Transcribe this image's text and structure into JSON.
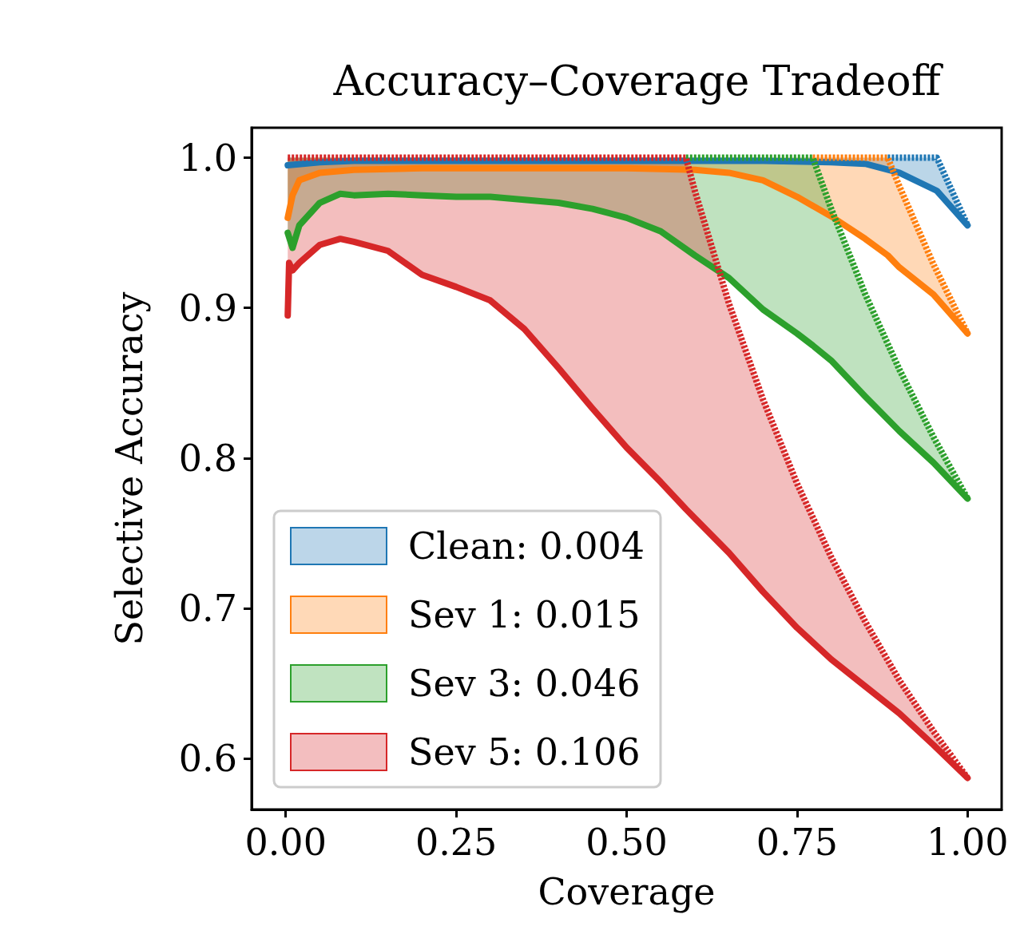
{
  "chart_data": {
    "type": "line",
    "title": "Accuracy–Coverage Tradeoff",
    "xlabel": "Coverage",
    "ylabel": "Selective Accuracy",
    "xlim": [
      -0.05,
      1.05
    ],
    "ylim": [
      0.566,
      1.02
    ],
    "xticks": [
      {
        "value": 0,
        "label": "0.00"
      },
      {
        "value": 0.25,
        "label": "0.25"
      },
      {
        "value": 0.5,
        "label": "0.50"
      },
      {
        "value": 0.75,
        "label": "0.75"
      },
      {
        "value": 1,
        "label": "1.00"
      }
    ],
    "yticks": [
      0.6,
      0.7,
      0.8,
      0.9,
      {
        "value": 1,
        "label": "1.0"
      }
    ],
    "grid": false,
    "legend": "bottom left",
    "marker": "none",
    "series": [
      {
        "name": "Clean: 0.004",
        "color": "#1f77b4",
        "line_style": "solid",
        "x": [
          0.003,
          0.05,
          0.1,
          0.2,
          0.3,
          0.4,
          0.5,
          0.6,
          0.7,
          0.8,
          0.85,
          0.9,
          0.955,
          1.0
        ],
        "values": [
          0.995,
          0.997,
          0.998,
          0.998,
          0.998,
          0.998,
          0.998,
          0.998,
          0.998,
          0.997,
          0.996,
          0.99,
          0.978,
          0.955
        ],
        "lower": [
          0.995,
          0.997,
          0.998,
          0.998,
          0.998,
          0.998,
          0.998,
          0.998,
          0.998,
          0.997,
          0.996,
          0.99,
          0.978,
          0.955
        ],
        "upper": [
          1,
          1,
          1,
          1,
          1,
          1,
          1,
          1,
          1,
          1,
          1,
          1,
          1,
          0.955
        ]
      },
      {
        "name": "Sev 1: 0.015",
        "color": "#ff7f0e",
        "line_style": "solid",
        "x": [
          0.003,
          0.01,
          0.02,
          0.05,
          0.1,
          0.2,
          0.3,
          0.4,
          0.5,
          0.6,
          0.65,
          0.7,
          0.75,
          0.8,
          0.85,
          0.883,
          0.9,
          0.95,
          1.0
        ],
        "values": [
          0.96,
          0.975,
          0.985,
          0.99,
          0.992,
          0.993,
          0.993,
          0.993,
          0.993,
          0.992,
          0.99,
          0.985,
          0.974,
          0.961,
          0.946,
          0.935,
          0.927,
          0.909,
          0.883
        ],
        "lower": [
          0.96,
          0.975,
          0.985,
          0.99,
          0.992,
          0.993,
          0.993,
          0.993,
          0.993,
          0.992,
          0.99,
          0.985,
          0.974,
          0.961,
          0.946,
          0.935,
          0.927,
          0.909,
          0.883
        ],
        "upper": [
          1,
          1,
          1,
          1,
          1,
          1,
          1,
          1,
          1,
          1,
          1,
          1,
          1,
          1,
          1,
          1,
          0.981,
          0.929,
          0.883
        ]
      },
      {
        "name": "Sev 3: 0.046",
        "color": "#2ca02c",
        "line_style": "solid",
        "x": [
          0.003,
          0.01,
          0.02,
          0.05,
          0.08,
          0.1,
          0.15,
          0.2,
          0.25,
          0.3,
          0.35,
          0.4,
          0.45,
          0.5,
          0.55,
          0.6,
          0.65,
          0.7,
          0.75,
          0.773,
          0.8,
          0.85,
          0.9,
          0.95,
          1.0
        ],
        "values": [
          0.95,
          0.94,
          0.955,
          0.97,
          0.976,
          0.975,
          0.976,
          0.975,
          0.974,
          0.974,
          0.972,
          0.97,
          0.966,
          0.96,
          0.951,
          0.935,
          0.92,
          0.899,
          0.883,
          0.875,
          0.865,
          0.841,
          0.818,
          0.797,
          0.773
        ],
        "lower": [
          0.95,
          0.94,
          0.955,
          0.97,
          0.976,
          0.975,
          0.976,
          0.975,
          0.974,
          0.974,
          0.972,
          0.97,
          0.966,
          0.96,
          0.951,
          0.935,
          0.92,
          0.899,
          0.883,
          0.875,
          0.865,
          0.841,
          0.818,
          0.797,
          0.773
        ],
        "upper": [
          1,
          1,
          1,
          1,
          1,
          1,
          1,
          1,
          1,
          1,
          1,
          1,
          1,
          1,
          1,
          1,
          1,
          1,
          1,
          1,
          0.966,
          0.909,
          0.859,
          0.814,
          0.773
        ]
      },
      {
        "name": "Sev 5: 0.106",
        "color": "#d62728",
        "line_style": "solid",
        "x": [
          0.003,
          0.005,
          0.01,
          0.02,
          0.05,
          0.08,
          0.1,
          0.15,
          0.2,
          0.25,
          0.3,
          0.35,
          0.4,
          0.45,
          0.5,
          0.55,
          0.587,
          0.6,
          0.65,
          0.7,
          0.75,
          0.8,
          0.85,
          0.9,
          0.95,
          1.0
        ],
        "values": [
          0.895,
          0.93,
          0.925,
          0.93,
          0.942,
          0.946,
          0.944,
          0.938,
          0.922,
          0.914,
          0.905,
          0.886,
          0.86,
          0.833,
          0.807,
          0.784,
          0.766,
          0.76,
          0.737,
          0.711,
          0.687,
          0.666,
          0.648,
          0.63,
          0.609,
          0.587
        ],
        "lower": [
          0.895,
          0.93,
          0.925,
          0.93,
          0.942,
          0.946,
          0.944,
          0.938,
          0.922,
          0.914,
          0.905,
          0.886,
          0.86,
          0.833,
          0.807,
          0.784,
          0.766,
          0.76,
          0.737,
          0.711,
          0.687,
          0.666,
          0.648,
          0.63,
          0.609,
          0.587
        ],
        "upper": [
          1,
          1,
          1,
          1,
          1,
          1,
          1,
          1,
          1,
          1,
          1,
          1,
          1,
          1,
          1,
          1,
          1,
          0.978,
          0.903,
          0.839,
          0.783,
          0.734,
          0.691,
          0.652,
          0.618,
          0.587
        ]
      },
      {
        "color": "#1f77b4",
        "line_style": "dashed",
        "x": [
          0.883,
          0.955,
          1.0
        ],
        "values": [
          1,
          1,
          0.955
        ]
      },
      {
        "color": "#ff7f0e",
        "line_style": "dashed",
        "x": [
          0.773,
          0.883,
          0.9,
          0.95,
          1.0
        ],
        "values": [
          1,
          1,
          0.981,
          0.929,
          0.883
        ]
      },
      {
        "color": "#2ca02c",
        "line_style": "dashed",
        "x": [
          0.587,
          0.773,
          0.8,
          0.85,
          0.9,
          0.95,
          1.0
        ],
        "values": [
          1,
          1,
          0.966,
          0.909,
          0.859,
          0.814,
          0.773
        ]
      },
      {
        "color": "#d62728",
        "line_style": "dashed",
        "x": [
          0.003,
          0.005,
          0.01,
          0.02,
          0.05,
          0.08,
          0.1,
          0.15,
          0.2,
          0.25,
          0.3,
          0.35,
          0.4,
          0.45,
          0.5,
          0.55,
          0.587,
          0.6,
          0.65,
          0.7,
          0.75,
          0.8,
          0.85,
          0.9,
          0.95,
          1.0
        ],
        "values": [
          1,
          1,
          1,
          1,
          1,
          1,
          1,
          1,
          1,
          1,
          1,
          1,
          1,
          1,
          1,
          1,
          1,
          0.978,
          0.903,
          0.839,
          0.783,
          0.734,
          0.691,
          0.652,
          0.618,
          0.587
        ]
      }
    ]
  }
}
